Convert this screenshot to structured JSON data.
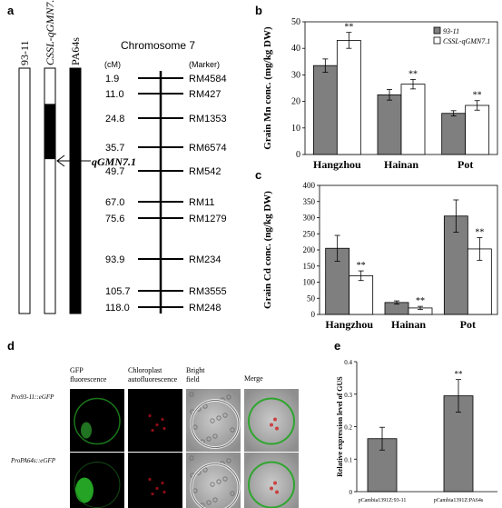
{
  "panels": {
    "a": {
      "letter": "a",
      "strains": [
        "93-11",
        "CSSL-qGMN7.1",
        "PA64s"
      ],
      "chromosome_title": "Chromosome 7",
      "cm_header": "(cM)",
      "marker_header": "(Marker)",
      "markers": [
        {
          "cm": "1.9",
          "name": "RM4584"
        },
        {
          "cm": "11.0",
          "name": "RM427"
        },
        {
          "cm": "24.8",
          "name": "RM1353"
        },
        {
          "cm": "35.7",
          "name": "RM6574"
        },
        {
          "cm": "49.7",
          "name": "RM542"
        },
        {
          "cm": "67.0",
          "name": "RM11"
        },
        {
          "cm": "75.6",
          "name": "RM1279"
        },
        {
          "cm": "93.9",
          "name": "RM234"
        },
        {
          "cm": "105.7",
          "name": "RM3555"
        },
        {
          "cm": "118.0",
          "name": "RM248"
        }
      ],
      "qtl_label": "qGMN7.1",
      "segment_cm": [
        17.5,
        44.5
      ]
    },
    "b": {
      "letter": "b",
      "chart_data": {
        "type": "bar",
        "categories": [
          "Hangzhou",
          "Hainan",
          "Pot"
        ],
        "series": [
          {
            "name": "93-11",
            "values": [
              33.5,
              22.5,
              15.5
            ],
            "errors": [
              2.5,
              2.0,
              1.0
            ],
            "color": "#7f7f7f"
          },
          {
            "name": "CSSL-qGMN7.1",
            "values": [
              43.0,
              26.5,
              18.5
            ],
            "errors": [
              3.0,
              1.8,
              1.8
            ],
            "color": "#ffffff"
          }
        ],
        "significance": [
          "**",
          "**",
          "**"
        ],
        "ylabel": "Grain Mn conc. (mg/kg DW)",
        "ylim": [
          0,
          50
        ],
        "yticks": [
          "0",
          "10",
          "20",
          "30",
          "40",
          "50"
        ],
        "legend_position": "top-right"
      }
    },
    "c": {
      "letter": "c",
      "chart_data": {
        "type": "bar",
        "categories": [
          "Hangzhou",
          "Hainan",
          "Pot"
        ],
        "series": [
          {
            "name": "93-11",
            "values": [
              205,
              37,
              305
            ],
            "errors": [
              40,
              5,
              50
            ],
            "color": "#7f7f7f"
          },
          {
            "name": "CSSL-qGMN7.1",
            "values": [
              120,
              20,
              203
            ],
            "errors": [
              15,
              5,
              35
            ],
            "color": "#ffffff"
          }
        ],
        "significance": [
          "**",
          "**",
          "**"
        ],
        "ylabel": "Grain Cd conc. (ng/kg DW)",
        "ylim": [
          0,
          400
        ],
        "yticks": [
          "0",
          "50",
          "100",
          "150",
          "200",
          "250",
          "300",
          "350",
          "400"
        ]
      }
    },
    "d": {
      "letter": "d",
      "column_headers": [
        "GFP fluorescence",
        "Chloroplast autofluorescence",
        "Bright field",
        "Merge"
      ],
      "row_labels": [
        "Pro93-11::eGFP",
        "ProPA64s::eGFP"
      ]
    },
    "e": {
      "letter": "e",
      "chart_data": {
        "type": "bar",
        "categories": [
          "pCambia1391Z:93-11",
          "pCambia1391Z:PA64s"
        ],
        "values": [
          0.163,
          0.295
        ],
        "errors": [
          0.035,
          0.05
        ],
        "significance": [
          "",
          "**"
        ],
        "ylabel": "Relative expression level of GUS",
        "ylim": [
          0,
          0.4
        ],
        "yticks": [
          "0",
          "0.1",
          "0.2",
          "0.3",
          "0.4"
        ],
        "color": "#7f7f7f"
      }
    }
  }
}
